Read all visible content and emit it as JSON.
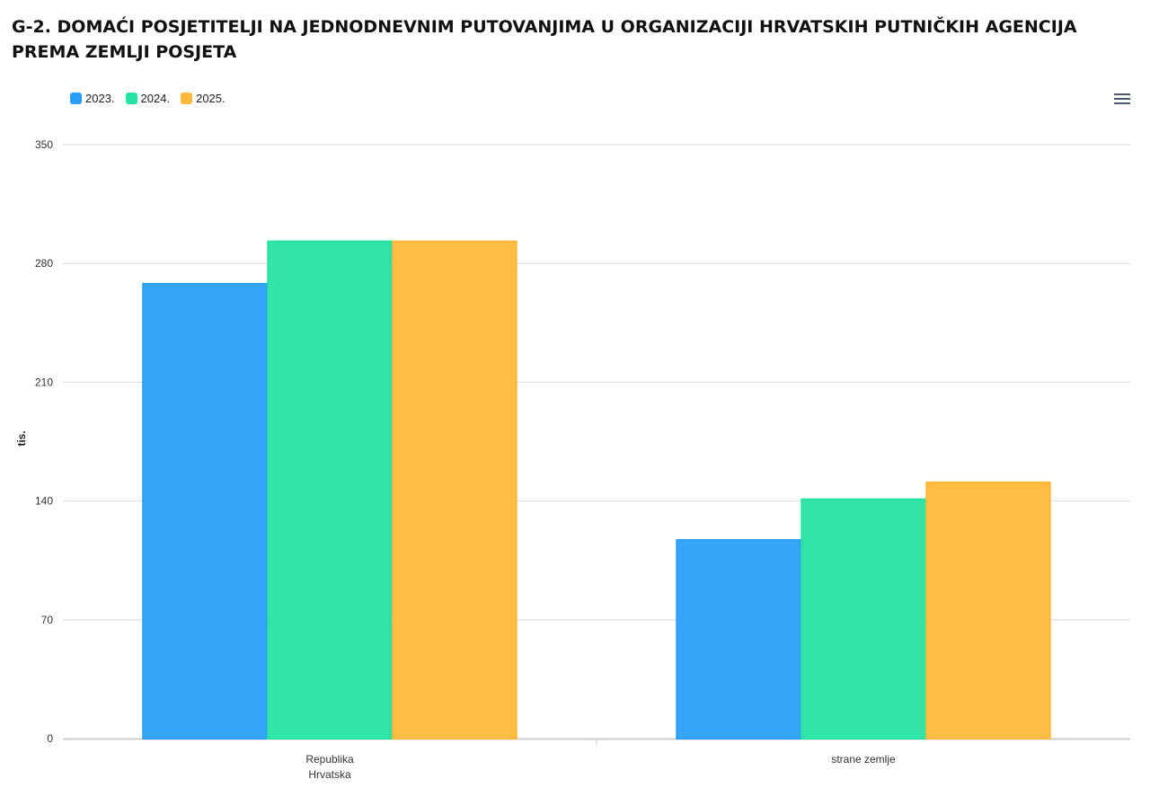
{
  "page": {
    "title": "G-2. DOMAĆI POSJETITELJI NA JEDNODNEVNIM PUTOVANJIMA U ORGANIZACIJI HRVATSKIH PUTNIČKIH AGENCIJA PREMA ZEMLJI POSJETA"
  },
  "toolbar": {
    "menu_icon": "hamburger-menu-icon"
  },
  "chart_data": {
    "type": "bar",
    "title": "G-2. DOMAĆI POSJETITELJI NA JEDNODNEVNIM PUTOVANJIMA U ORGANIZACIJI HRVATSKIH PUTNIČKIH AGENCIJA PREMA ZEMLJI POSJETA",
    "xlabel": "",
    "ylabel": "tis.",
    "categories": [
      [
        "Republika",
        "Hrvatska"
      ],
      [
        "strane zemlje"
      ]
    ],
    "series": [
      {
        "name": "2023.",
        "color": "#2b9ff8",
        "values": [
          268,
          117
        ]
      },
      {
        "name": "2024.",
        "color": "#27e3a1",
        "values": [
          293,
          141
        ]
      },
      {
        "name": "2025.",
        "color": "#ffb93a",
        "values": [
          293,
          151
        ]
      }
    ],
    "ylim": [
      0,
      350
    ],
    "yticks": [
      0,
      70,
      140,
      210,
      280,
      350
    ],
    "grid": true,
    "legend": "top-left"
  }
}
